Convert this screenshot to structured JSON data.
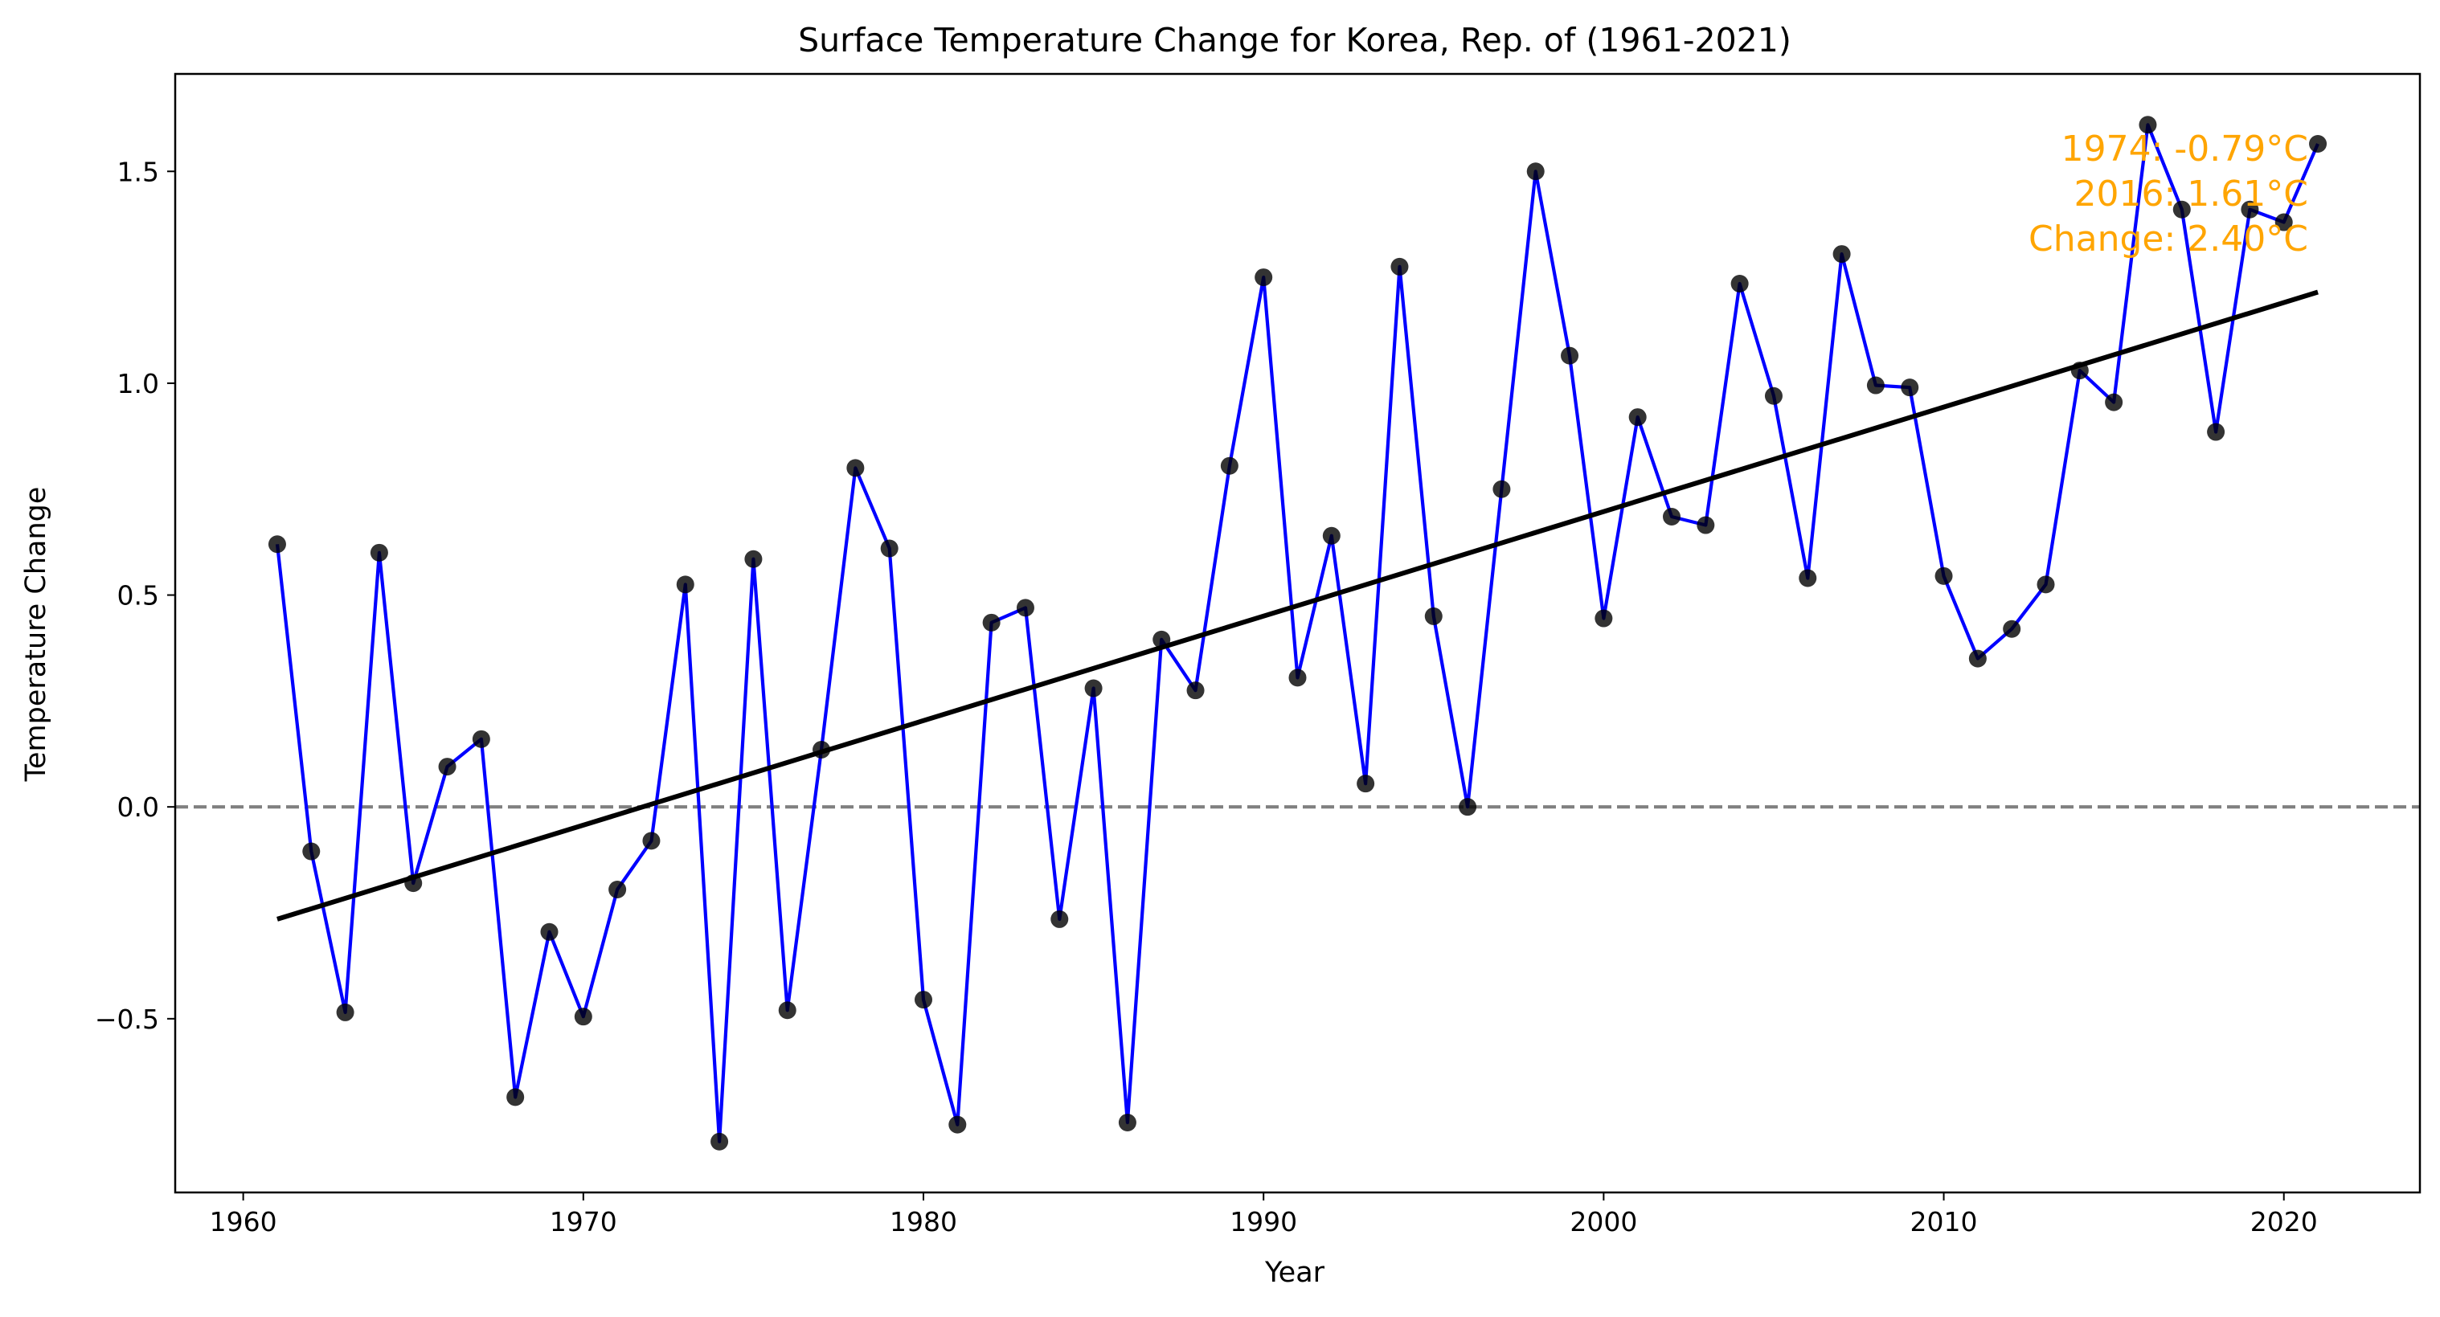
{
  "chart_data": {
    "type": "line",
    "title": "Surface Temperature Change for Korea, Rep. of (1961-2021)",
    "xlabel": "Year",
    "ylabel": "Temperature Change",
    "xlim": [
      1958,
      2024
    ],
    "ylim": [
      -0.91,
      1.73
    ],
    "x_ticks": [
      1960,
      1970,
      1980,
      1990,
      2000,
      2010,
      2020
    ],
    "y_ticks": [
      -0.5,
      0.0,
      0.5,
      1.0,
      1.5
    ],
    "y_tick_labels": [
      "−0.5",
      "0.0",
      "0.5",
      "1.0",
      "1.5"
    ],
    "grid": false,
    "colors": {
      "series_line": "#0000ff",
      "markers": "#000000",
      "trend_line": "#000000",
      "zero_line": "#808080",
      "annotation": "#ffa500"
    },
    "series": [
      {
        "x": [
          1961,
          1962,
          1963,
          1964,
          1965,
          1966,
          1967,
          1968,
          1969,
          1970,
          1971,
          1972,
          1973,
          1974,
          1975,
          1976,
          1977,
          1978,
          1979,
          1980,
          1981,
          1982,
          1983,
          1984,
          1985,
          1986,
          1987,
          1988,
          1989,
          1990,
          1991,
          1992,
          1993,
          1994,
          1995,
          1996,
          1997,
          1998,
          1999,
          2000,
          2001,
          2002,
          2003,
          2004,
          2005,
          2006,
          2007,
          2008,
          2009,
          2010,
          2011,
          2012,
          2013,
          2014,
          2015,
          2016,
          2017,
          2018,
          2019,
          2020,
          2021
        ],
        "values": [
          0.62,
          -0.105,
          -0.485,
          0.6,
          -0.18,
          0.095,
          0.16,
          -0.685,
          -0.295,
          -0.495,
          -0.195,
          -0.08,
          0.525,
          -0.79,
          0.585,
          -0.48,
          0.135,
          0.8,
          0.61,
          -0.455,
          -0.75,
          0.435,
          0.47,
          -0.265,
          0.28,
          -0.745,
          0.395,
          0.275,
          0.805,
          1.25,
          0.305,
          0.64,
          0.055,
          1.275,
          0.45,
          0.0,
          0.75,
          1.5,
          1.065,
          0.445,
          0.92,
          0.685,
          0.665,
          1.235,
          0.97,
          0.54,
          1.305,
          0.995,
          0.99,
          0.545,
          0.35,
          0.42,
          0.525,
          1.03,
          0.955,
          1.61,
          1.41,
          0.885,
          1.41,
          1.38,
          1.565
        ]
      }
    ],
    "trend_line": {
      "x": [
        1961,
        2021
      ],
      "y": [
        -0.265,
        1.215
      ]
    },
    "reference_line": {
      "y": 0.0
    },
    "annotations": [
      "1974: -0.79°C",
      "2016: 1.61°C",
      "Change: 2.40°C"
    ]
  }
}
